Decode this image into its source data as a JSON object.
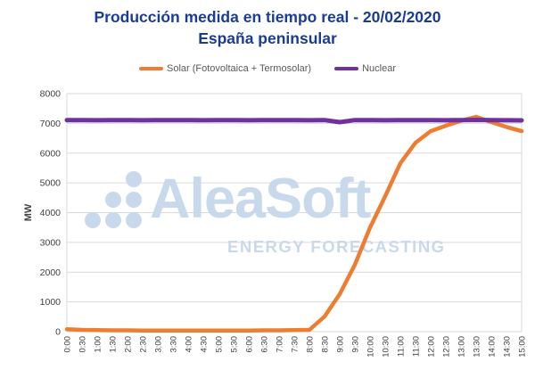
{
  "title": {
    "line1": "Producción medida en tiempo real - 20/02/2020",
    "line2": "España peninsular"
  },
  "colors": {
    "title_blue": "#1A3C96",
    "solar_orange": "#ED7D31",
    "nuclear_purple": "#7030A0",
    "gridline": "#D9D9D9",
    "axis_text": "#404040",
    "legend_text": "#595959",
    "watermark_blue": "#C9D9EC"
  },
  "watermark": {
    "brand": "AleaSoft",
    "tagline": "ENERGY FORECASTING"
  },
  "axes": {
    "y_label": "MW",
    "y_ticks": [
      0,
      1000,
      2000,
      3000,
      4000,
      5000,
      6000,
      7000,
      8000
    ]
  },
  "chart_data": {
    "type": "line",
    "title": "Producción medida en tiempo real - 20/02/2020 España peninsular",
    "xlabel": "",
    "ylabel": "MW",
    "ylim": [
      0,
      8000
    ],
    "grid": true,
    "legend_position": "top",
    "x": [
      "0:00",
      "0:30",
      "1:00",
      "1:30",
      "2:00",
      "2:30",
      "3:00",
      "3:30",
      "4:00",
      "4:30",
      "5:00",
      "5:30",
      "6:00",
      "6:30",
      "7:00",
      "7:30",
      "8:00",
      "8:30",
      "9:00",
      "9:30",
      "10:00",
      "10:30",
      "11:00",
      "11:30",
      "12:00",
      "12:30",
      "13:00",
      "13:30",
      "14:00",
      "14:30",
      "15:00"
    ],
    "series": [
      {
        "name": "Solar (Fotovoltaica + Termosolar)",
        "color": "#ED7D31",
        "values": [
          80,
          60,
          50,
          45,
          45,
          40,
          40,
          40,
          40,
          40,
          40,
          40,
          40,
          45,
          45,
          50,
          60,
          510,
          1260,
          2250,
          3500,
          4550,
          5660,
          6350,
          6740,
          6920,
          7090,
          7220,
          7040,
          6880,
          6740
        ]
      },
      {
        "name": "Nuclear",
        "color": "#7030A0",
        "values": [
          7110,
          7110,
          7105,
          7110,
          7110,
          7105,
          7110,
          7110,
          7110,
          7105,
          7110,
          7110,
          7105,
          7110,
          7110,
          7110,
          7105,
          7110,
          7040,
          7110,
          7110,
          7105,
          7110,
          7110,
          7110,
          7105,
          7110,
          7115,
          7110,
          7105,
          7100
        ]
      }
    ]
  }
}
